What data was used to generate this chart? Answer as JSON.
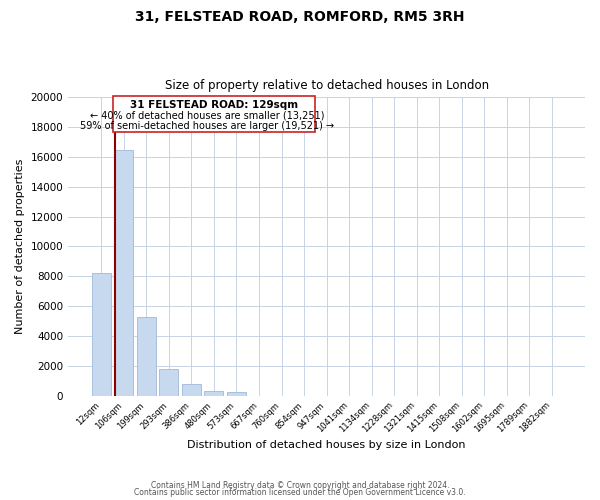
{
  "title": "31, FELSTEAD ROAD, ROMFORD, RM5 3RH",
  "subtitle": "Size of property relative to detached houses in London",
  "xlabel": "Distribution of detached houses by size in London",
  "ylabel": "Number of detached properties",
  "bar_labels": [
    "12sqm",
    "106sqm",
    "199sqm",
    "293sqm",
    "386sqm",
    "480sqm",
    "573sqm",
    "667sqm",
    "760sqm",
    "854sqm",
    "947sqm",
    "1041sqm",
    "1134sqm",
    "1228sqm",
    "1321sqm",
    "1415sqm",
    "1508sqm",
    "1602sqm",
    "1695sqm",
    "1789sqm",
    "1882sqm"
  ],
  "bar_values": [
    8200,
    16500,
    5300,
    1800,
    750,
    300,
    250,
    0,
    0,
    0,
    0,
    0,
    0,
    0,
    0,
    0,
    0,
    0,
    0,
    0,
    0
  ],
  "bar_color": "#c6d9ee",
  "bar_edge_color": "#a0b8d8",
  "highlight_color": "#8b0000",
  "ylim": [
    0,
    20000
  ],
  "yticks": [
    0,
    2000,
    4000,
    6000,
    8000,
    10000,
    12000,
    14000,
    16000,
    18000,
    20000
  ],
  "ann_line1": "31 FELSTEAD ROAD: 129sqm",
  "ann_line2": "← 40% of detached houses are smaller (13,251)",
  "ann_line3": "59% of semi-detached houses are larger (19,521) →",
  "footer_line1": "Contains HM Land Registry data © Crown copyright and database right 2024.",
  "footer_line2": "Contains public sector information licensed under the Open Government Licence v3.0.",
  "background_color": "#ffffff",
  "grid_color": "#c8d4e4"
}
